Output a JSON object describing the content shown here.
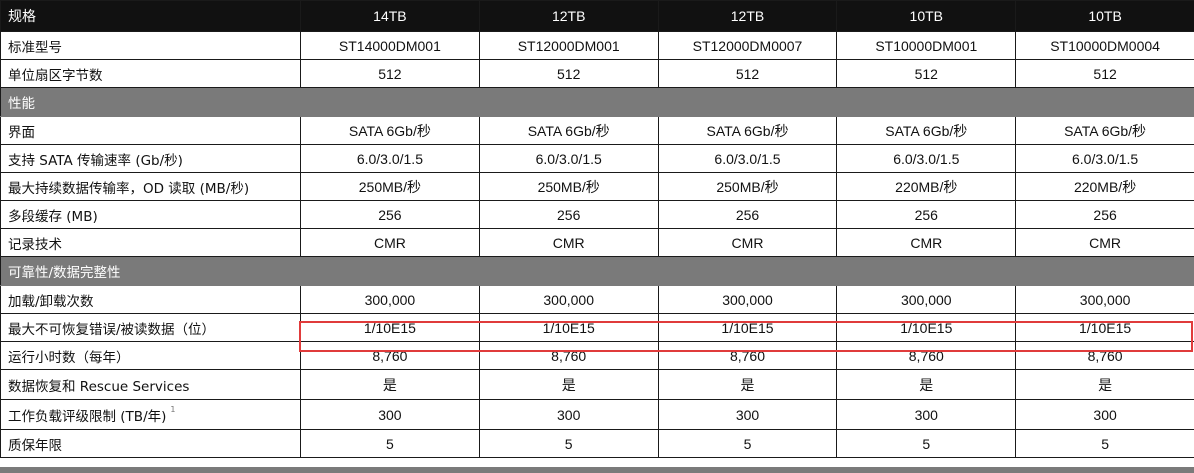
{
  "table": {
    "header": {
      "label": "规格",
      "values": [
        "14TB",
        "12TB",
        "12TB",
        "10TB",
        "10TB"
      ]
    },
    "rows_top": [
      {
        "label": "标准型号",
        "values": [
          "ST14000DM001",
          "ST12000DM001",
          "ST12000DM0007",
          "ST10000DM001",
          "ST10000DM0004"
        ]
      },
      {
        "label": "单位扇区字节数",
        "values": [
          "512",
          "512",
          "512",
          "512",
          "512"
        ]
      }
    ],
    "section_performance": "性能",
    "rows_performance": [
      {
        "label": "界面",
        "values": [
          "SATA 6Gb/秒",
          "SATA 6Gb/秒",
          "SATA 6Gb/秒",
          "SATA 6Gb/秒",
          "SATA 6Gb/秒"
        ]
      },
      {
        "label": "支持 SATA 传输速率 (Gb/秒)",
        "values": [
          "6.0/3.0/1.5",
          "6.0/3.0/1.5",
          "6.0/3.0/1.5",
          "6.0/3.0/1.5",
          "6.0/3.0/1.5"
        ]
      },
      {
        "label": "最大持续数据传输率，OD 读取 (MB/秒)",
        "values": [
          "250MB/秒",
          "250MB/秒",
          "250MB/秒",
          "220MB/秒",
          "220MB/秒"
        ]
      },
      {
        "label": "多段缓存 (MB)",
        "values": [
          "256",
          "256",
          "256",
          "256",
          "256"
        ]
      },
      {
        "label": "记录技术",
        "values": [
          "CMR",
          "CMR",
          "CMR",
          "CMR",
          "CMR"
        ]
      }
    ],
    "section_reliability": "可靠性/数据完整性",
    "rows_reliability": [
      {
        "label": "加载/卸载次数",
        "values": [
          "300,000",
          "300,000",
          "300,000",
          "300,000",
          "300,000"
        ]
      },
      {
        "label": "最大不可恢复错误/被读数据（位）",
        "values": [
          "1/10E15",
          "1/10E15",
          "1/10E15",
          "1/10E15",
          "1/10E15"
        ]
      },
      {
        "label": "运行小时数（每年）",
        "values": [
          "8,760",
          "8,760",
          "8,760",
          "8,760",
          "8,760"
        ]
      },
      {
        "label": "数据恢复和 Rescue Services",
        "values": [
          "是",
          "是",
          "是",
          "是",
          "是"
        ]
      },
      {
        "label": "工作负载评级限制 (TB/年)",
        "footnote": "1",
        "values": [
          "300",
          "300",
          "300",
          "300",
          "300"
        ]
      },
      {
        "label": "质保年限",
        "values": [
          "5",
          "5",
          "5",
          "5",
          "5"
        ]
      }
    ]
  },
  "highlight_color": "#e03b3b"
}
